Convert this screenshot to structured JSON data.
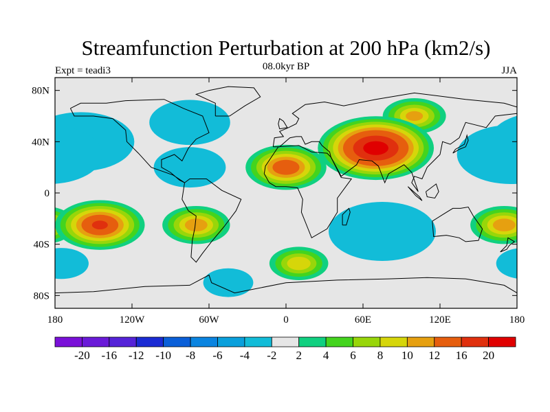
{
  "chart_data": {
    "type": "heatmap",
    "title": "Streamfunction Perturbation at 200 hPa (km2/s)",
    "left_label": "Expt = teadi3",
    "center_label": "08.0kyr BP",
    "right_label": "JJA",
    "lon_range": [
      -180,
      180
    ],
    "lat_range": [
      -90,
      90
    ],
    "x_ticks": [
      {
        "value": -180,
        "label": "180"
      },
      {
        "value": -120,
        "label": "120W"
      },
      {
        "value": -60,
        "label": "60W"
      },
      {
        "value": 0,
        "label": "0"
      },
      {
        "value": 60,
        "label": "60E"
      },
      {
        "value": 120,
        "label": "120E"
      },
      {
        "value": 180,
        "label": "180"
      }
    ],
    "y_ticks": [
      {
        "value": 80,
        "label": "80N"
      },
      {
        "value": 40,
        "label": "40N"
      },
      {
        "value": 0,
        "label": "0"
      },
      {
        "value": -40,
        "label": "40S"
      },
      {
        "value": -80,
        "label": "80S"
      }
    ],
    "colorbar": {
      "levels": [
        -20,
        -16,
        -12,
        -10,
        -8,
        -6,
        -4,
        -2,
        2,
        4,
        6,
        8,
        10,
        12,
        16,
        20
      ],
      "labels": [
        "-20",
        "-16",
        "-12",
        "-10",
        "-8",
        "-6",
        "-4",
        "-2",
        "2",
        "4",
        "6",
        "8",
        "10",
        "12",
        "16",
        "20"
      ],
      "colors": [
        "#7a10d8",
        "#6a1ad8",
        "#5523d8",
        "#1a2bd4",
        "#0a5fd8",
        "#0a84e0",
        "#0aa0dc",
        "#12bcd8",
        "#e6e6e6",
        "#10d080",
        "#44d41e",
        "#98d60a",
        "#d6d60a",
        "#e6a010",
        "#e65e0e",
        "#e0300e",
        "#e00000"
      ]
    },
    "features": [
      {
        "name": "Central Eurasia high",
        "lon": 70,
        "lat": 35,
        "value": 22
      },
      {
        "name": "North Africa / Mediterranean high",
        "lon": 0,
        "lat": 20,
        "value": 14
      },
      {
        "name": "Siberia positive",
        "lon": 100,
        "lat": 60,
        "value": 10
      },
      {
        "name": "North Pacific low",
        "lon": -160,
        "lat": 40,
        "value": -20
      },
      {
        "name": "West Pacific low",
        "lon": 175,
        "lat": 30,
        "value": -20
      },
      {
        "name": "Canada low",
        "lon": -75,
        "lat": 55,
        "value": -14
      },
      {
        "name": "Caribbean low",
        "lon": -75,
        "lat": 20,
        "value": -12
      },
      {
        "name": "Southern Indian Ocean low",
        "lon": 75,
        "lat": -30,
        "value": -20
      },
      {
        "name": "South Pacific high",
        "lon": -145,
        "lat": -25,
        "value": 16
      },
      {
        "name": "South America high",
        "lon": -70,
        "lat": -25,
        "value": 11
      },
      {
        "name": "South Atlantic high",
        "lon": 10,
        "lat": -55,
        "value": 9
      },
      {
        "name": "Southwest Pacific high",
        "lon": 170,
        "lat": -25,
        "value": 11
      },
      {
        "name": "South Pacific low",
        "lon": -175,
        "lat": -55,
        "value": -8
      },
      {
        "name": "Southern Ocean low",
        "lon": -45,
        "lat": -70,
        "value": -7
      }
    ]
  }
}
